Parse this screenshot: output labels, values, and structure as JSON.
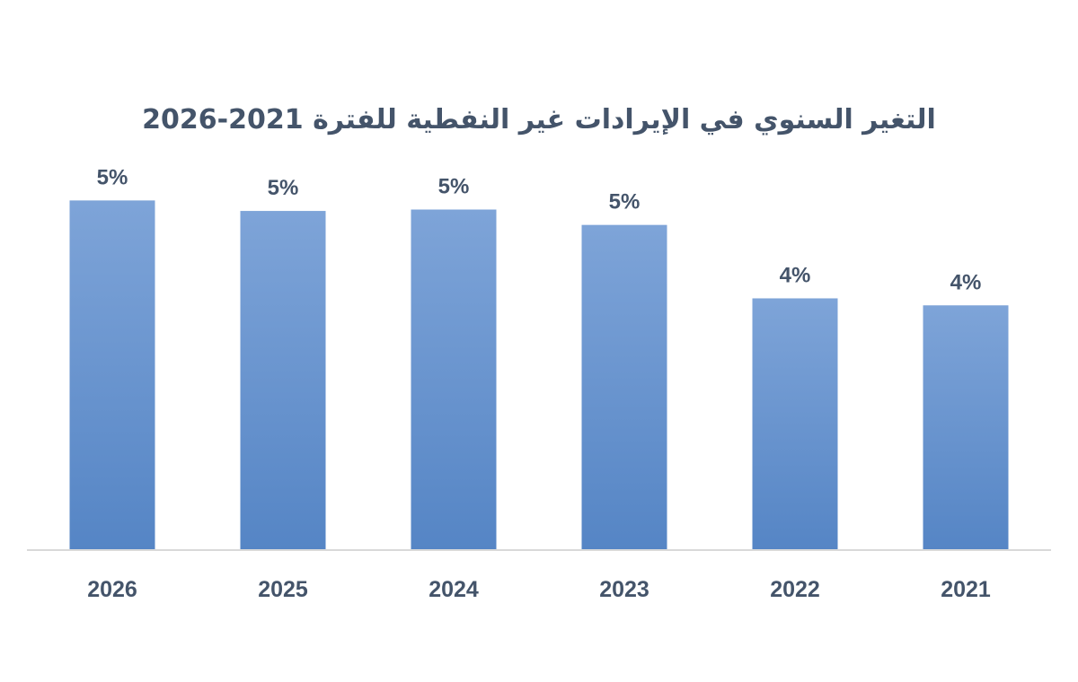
{
  "chart_data": {
    "type": "bar",
    "title": "التغير السنوي في الإيرادات غير النفطية للفترة 2021-2026",
    "xlabel": "",
    "ylabel": "",
    "categories": [
      "2026",
      "2025",
      "2024",
      "2023",
      "2022",
      "2021"
    ],
    "values": [
      5.0,
      4.85,
      4.87,
      4.65,
      3.6,
      3.5
    ],
    "data_labels": [
      "5%",
      "5%",
      "5%",
      "5%",
      "4%",
      "4%"
    ],
    "ylim": [
      0,
      5.3
    ],
    "grid": false,
    "legend": "none",
    "colors": {
      "bar_top": "#7ea4d8",
      "bar_bottom": "#5585c5",
      "text": "#44546a",
      "axis": "#d9d9d9"
    }
  }
}
